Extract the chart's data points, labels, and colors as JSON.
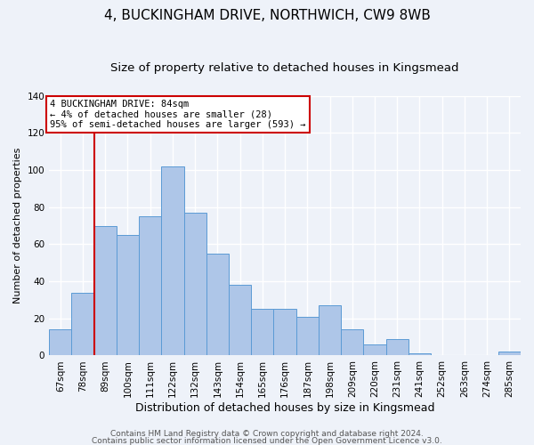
{
  "title": "4, BUCKINGHAM DRIVE, NORTHWICH, CW9 8WB",
  "subtitle": "Size of property relative to detached houses in Kingsmead",
  "xlabel": "Distribution of detached houses by size in Kingsmead",
  "ylabel": "Number of detached properties",
  "bin_labels": [
    "67sqm",
    "78sqm",
    "89sqm",
    "100sqm",
    "111sqm",
    "122sqm",
    "132sqm",
    "143sqm",
    "154sqm",
    "165sqm",
    "176sqm",
    "187sqm",
    "198sqm",
    "209sqm",
    "220sqm",
    "231sqm",
    "241sqm",
    "252sqm",
    "263sqm",
    "274sqm",
    "285sqm"
  ],
  "bar_values": [
    14,
    34,
    70,
    65,
    75,
    102,
    77,
    55,
    38,
    25,
    25,
    21,
    27,
    14,
    6,
    9,
    1,
    0,
    0,
    0,
    2
  ],
  "bar_color": "#aec6e8",
  "bar_edge_color": "#5b9bd5",
  "background_color": "#eef2f9",
  "grid_color": "#ffffff",
  "ylim": [
    0,
    140
  ],
  "yticks": [
    0,
    20,
    40,
    60,
    80,
    100,
    120,
    140
  ],
  "vline_x": 1.5,
  "vline_color": "#cc0000",
  "annotation_title": "4 BUCKINGHAM DRIVE: 84sqm",
  "annotation_line1": "← 4% of detached houses are smaller (28)",
  "annotation_line2": "95% of semi-detached houses are larger (593) →",
  "annotation_box_color": "#ffffff",
  "annotation_box_edge": "#cc0000",
  "footer1": "Contains HM Land Registry data © Crown copyright and database right 2024.",
  "footer2": "Contains public sector information licensed under the Open Government Licence v3.0.",
  "title_fontsize": 11,
  "subtitle_fontsize": 9.5,
  "xlabel_fontsize": 9,
  "ylabel_fontsize": 8,
  "tick_fontsize": 7.5,
  "footer_fontsize": 6.5
}
